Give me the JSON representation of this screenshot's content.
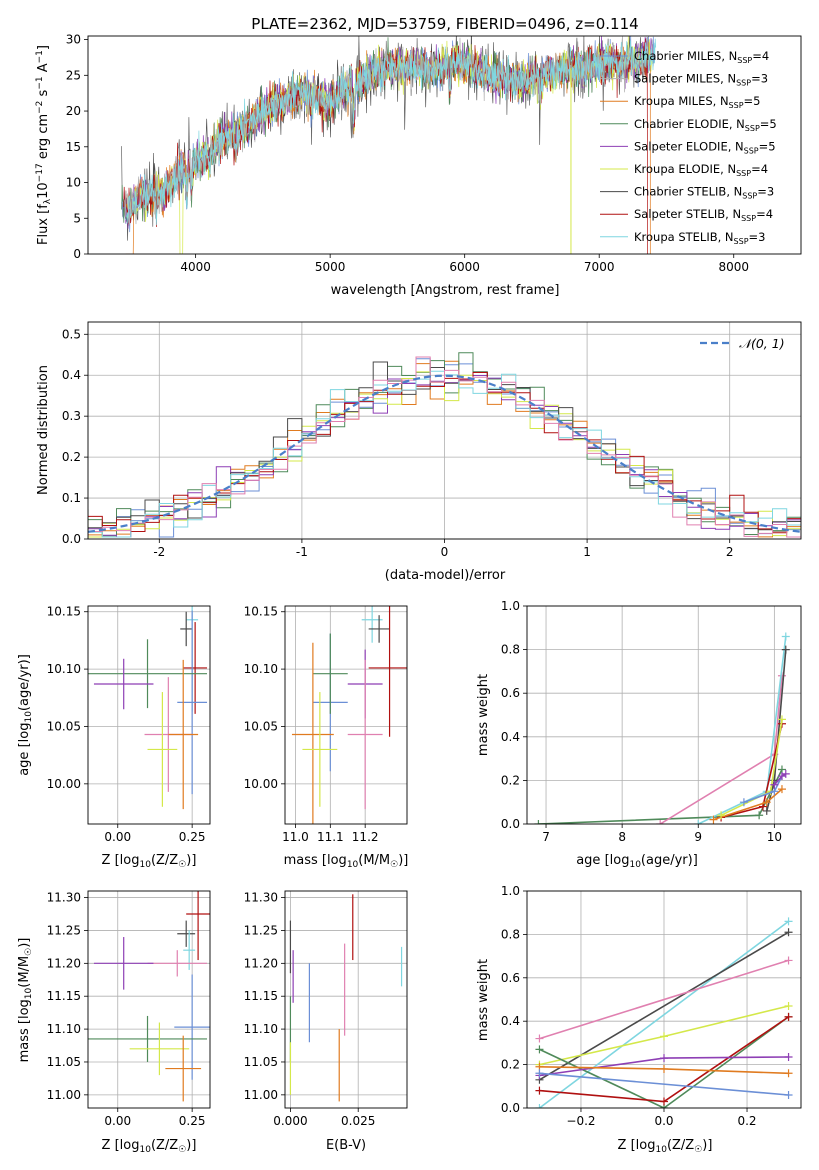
{
  "colors": {
    "chabrier_miles": "#6b8fd6",
    "salpeter_miles": "#b0b0b0",
    "kroupa_miles": "#e07b20",
    "chabrier_elodie": "#4f8a5a",
    "salpeter_elodie": "#8e3fb5",
    "kroupa_elodie": "#d4e84a",
    "chabrier_stelib": "#4a4a4a",
    "salpeter_stelib": "#b01010",
    "kroupa_stelib": "#7fd6e0",
    "pink": "#e080b0",
    "gaussian": "#4a7fc9"
  },
  "chart_data": [
    {
      "id": "spectrum",
      "type": "line",
      "title": "PLATE=2362, MJD=53759, FIBERID=0496, z=0.114",
      "xlabel": "wavelength [Angstrom, rest frame]",
      "ylabel": "Flux [f_λ 10^-17 erg cm^-2 s^-1 A^-1]",
      "xlim": [
        3200,
        8500
      ],
      "ylim": [
        0,
        30.5
      ],
      "xticks": [
        4000,
        5000,
        6000,
        7000,
        8000
      ],
      "yticks": [
        0,
        5,
        10,
        15,
        20,
        25,
        30
      ],
      "grid": false,
      "legend_position": "upper-right",
      "x": [
        3450,
        3500,
        3600,
        3700,
        3800,
        3900,
        4000,
        4100,
        4200,
        4300,
        4400,
        4500,
        4600,
        4700,
        4800,
        4900,
        5000,
        5100,
        5200,
        5300,
        5400,
        5500,
        5600,
        5700,
        5800,
        5900,
        6000,
        6100,
        6200,
        6300,
        6400,
        6500,
        6600,
        6700,
        6800,
        6900,
        7000,
        7100,
        7200,
        7300,
        7400
      ],
      "y": [
        7,
        6,
        8.5,
        8,
        9.5,
        12,
        13,
        14,
        16,
        17,
        18,
        20,
        21,
        22,
        22.5,
        22,
        21,
        23,
        24,
        25,
        26,
        26,
        26.5,
        26,
        26,
        27,
        26.5,
        26,
        25,
        24.5,
        24,
        24.5,
        25,
        25.5,
        26,
        26,
        26.5,
        27,
        26.5,
        27,
        28
      ],
      "series": [
        {
          "name": "Chabrier MILES, N_SSP=4",
          "color_key": "chabrier_miles"
        },
        {
          "name": "Salpeter MILES, N_SSP=3",
          "color_key": "salpeter_miles"
        },
        {
          "name": "Kroupa MILES, N_SSP=5",
          "color_key": "kroupa_miles"
        },
        {
          "name": "Chabrier ELODIE, N_SSP=5",
          "color_key": "chabrier_elodie"
        },
        {
          "name": "Salpeter ELODIE, N_SSP=5",
          "color_key": "salpeter_elodie"
        },
        {
          "name": "Kroupa ELODIE, N_SSP=4",
          "color_key": "kroupa_elodie"
        },
        {
          "name": "Chabrier STELIB, N_SSP=3",
          "color_key": "chabrier_stelib"
        },
        {
          "name": "Salpeter STELIB, N_SSP=4",
          "color_key": "salpeter_stelib"
        },
        {
          "name": "Kroupa STELIB, N_SSP=3",
          "color_key": "kroupa_stelib"
        }
      ]
    },
    {
      "id": "residuals",
      "type": "line",
      "xlabel": "(data-model)/error",
      "ylabel": "Normed distribution",
      "xlim": [
        -2.5,
        2.5
      ],
      "ylim": [
        0,
        0.53
      ],
      "xticks": [
        -2,
        -1,
        0,
        1,
        2
      ],
      "yticks": [
        0.0,
        0.1,
        0.2,
        0.3,
        0.4,
        0.5
      ],
      "grid": true,
      "legend_position": "upper-right",
      "legend": "N(0,1)",
      "bin_width": 0.1,
      "series_color_keys": [
        "chabrier_miles",
        "kroupa_miles",
        "chabrier_elodie",
        "salpeter_elodie",
        "kroupa_elodie",
        "chabrier_stelib",
        "salpeter_stelib",
        "kroupa_stelib",
        "pink"
      ]
    },
    {
      "id": "age_vs_Z",
      "type": "scatter",
      "xlabel": "Z [log10(Z/Z☉)]",
      "ylabel": "age [log10(age/yr)]",
      "xlim": [
        -0.1,
        0.31
      ],
      "ylim": [
        9.965,
        10.155
      ],
      "xticks": [
        0.0,
        0.25
      ],
      "yticks": [
        10.0,
        10.05,
        10.1,
        10.15
      ],
      "grid": true,
      "points": [
        {
          "x": 0.25,
          "y": 10.143,
          "xerr": 0.02,
          "yerr": 0.08,
          "color_key": "kroupa_stelib"
        },
        {
          "x": 0.23,
          "y": 10.135,
          "xerr": 0.02,
          "yerr": 0.015,
          "color_key": "chabrier_stelib"
        },
        {
          "x": 0.26,
          "y": 10.101,
          "xerr": 0.04,
          "yerr": 0.04,
          "color_key": "salpeter_stelib"
        },
        {
          "x": 0.25,
          "y": 10.071,
          "xerr": 0.05,
          "yerr": 0.08,
          "color_key": "chabrier_miles"
        },
        {
          "x": 0.1,
          "y": 10.096,
          "xerr": 0.2,
          "yerr": 0.03,
          "color_key": "chabrier_elodie"
        },
        {
          "x": 0.02,
          "y": 10.087,
          "xerr": 0.1,
          "yerr": 0.022,
          "color_key": "salpeter_elodie"
        },
        {
          "x": 0.17,
          "y": 10.043,
          "xerr": 0.08,
          "yerr": 0.05,
          "color_key": "pink"
        },
        {
          "x": 0.22,
          "y": 10.043,
          "xerr": 0.05,
          "yerr": 0.065,
          "color_key": "kroupa_miles"
        },
        {
          "x": 0.15,
          "y": 10.03,
          "xerr": 0.05,
          "yerr": 0.05,
          "color_key": "kroupa_elodie"
        }
      ]
    },
    {
      "id": "age_vs_mass",
      "type": "scatter",
      "xlabel": "mass [log10(M/M☉)]",
      "ylabel": "",
      "xlim": [
        10.97,
        11.32
      ],
      "ylim": [
        9.965,
        10.155
      ],
      "xticks": [
        11.0,
        11.1,
        11.2
      ],
      "yticks": [
        10.0,
        10.05,
        10.1,
        10.15
      ],
      "grid": true,
      "points": [
        {
          "x": 11.22,
          "y": 10.143,
          "xerr": 0.03,
          "yerr": 0.02,
          "color_key": "kroupa_stelib"
        },
        {
          "x": 11.24,
          "y": 10.135,
          "xerr": 0.03,
          "yerr": 0.012,
          "color_key": "chabrier_stelib"
        },
        {
          "x": 11.27,
          "y": 10.101,
          "xerr": 0.06,
          "yerr": 0.06,
          "color_key": "salpeter_stelib"
        },
        {
          "x": 11.1,
          "y": 10.071,
          "xerr": 0.05,
          "yerr": 0.06,
          "color_key": "chabrier_miles"
        },
        {
          "x": 11.1,
          "y": 10.096,
          "xerr": 0.05,
          "yerr": 0.035,
          "color_key": "chabrier_elodie"
        },
        {
          "x": 11.2,
          "y": 10.087,
          "xerr": 0.05,
          "yerr": 0.03,
          "color_key": "salpeter_elodie"
        },
        {
          "x": 11.2,
          "y": 10.043,
          "xerr": 0.05,
          "yerr": 0.065,
          "color_key": "pink"
        },
        {
          "x": 11.05,
          "y": 10.043,
          "xerr": 0.06,
          "yerr": 0.08,
          "color_key": "kroupa_miles"
        },
        {
          "x": 11.07,
          "y": 10.03,
          "xerr": 0.05,
          "yerr": 0.05,
          "color_key": "kroupa_elodie"
        }
      ]
    },
    {
      "id": "weight_vs_age",
      "type": "line",
      "xlabel": "age [log10(age/yr)]",
      "ylabel": "mass weight",
      "xlim": [
        6.75,
        10.35
      ],
      "ylim": [
        0,
        1.0
      ],
      "xticks": [
        7,
        8,
        9,
        10
      ],
      "yticks": [
        0.0,
        0.2,
        0.4,
        0.6,
        0.8,
        1.0
      ],
      "grid": true,
      "series": [
        {
          "color_key": "chabrier_elodie",
          "x": [
            6.9,
            9.8,
            10.1
          ],
          "y": [
            0.0,
            0.04,
            0.25
          ]
        },
        {
          "color_key": "pink",
          "x": [
            8.5,
            10.0,
            10.1
          ],
          "y": [
            0.0,
            0.32,
            0.68
          ]
        },
        {
          "color_key": "kroupa_stelib",
          "x": [
            9.0,
            9.9,
            10.15
          ],
          "y": [
            0.0,
            0.15,
            0.86
          ]
        },
        {
          "color_key": "chabrier_stelib",
          "x": [
            9.9,
            10.0,
            10.15
          ],
          "y": [
            0.06,
            0.2,
            0.8
          ]
        },
        {
          "color_key": "salpeter_stelib",
          "x": [
            9.3,
            9.85,
            10.1
          ],
          "y": [
            0.03,
            0.08,
            0.46
          ]
        },
        {
          "color_key": "kroupa_miles",
          "x": [
            9.2,
            9.9,
            10.1
          ],
          "y": [
            0.02,
            0.1,
            0.16
          ]
        },
        {
          "color_key": "kroupa_elodie",
          "x": [
            9.3,
            9.95,
            10.1
          ],
          "y": [
            0.04,
            0.15,
            0.48
          ]
        },
        {
          "color_key": "chabrier_miles",
          "x": [
            9.6,
            10.0,
            10.1
          ],
          "y": [
            0.1,
            0.15,
            0.22
          ]
        },
        {
          "color_key": "salpeter_elodie",
          "x": [
            10.0,
            10.1,
            10.15
          ],
          "y": [
            0.18,
            0.22,
            0.23
          ]
        }
      ]
    },
    {
      "id": "mass_vs_Z",
      "type": "scatter",
      "xlabel": "Z [log10(Z/Z☉)]",
      "ylabel": "mass [log10(M/M☉)]",
      "xlim": [
        -0.1,
        0.31
      ],
      "ylim": [
        10.98,
        11.31
      ],
      "xticks": [
        0.0,
        0.25
      ],
      "yticks": [
        11.0,
        11.05,
        11.1,
        11.15,
        11.2,
        11.25,
        11.3
      ],
      "grid": true,
      "points": [
        {
          "x": 0.27,
          "y": 11.275,
          "xerr": 0.04,
          "yerr": 0.07,
          "color_key": "salpeter_stelib"
        },
        {
          "x": 0.23,
          "y": 11.245,
          "xerr": 0.03,
          "yerr": 0.02,
          "color_key": "chabrier_stelib"
        },
        {
          "x": 0.24,
          "y": 11.22,
          "xerr": 0.02,
          "yerr": 0.03,
          "color_key": "kroupa_stelib"
        },
        {
          "x": 0.2,
          "y": 11.2,
          "xerr": 0.1,
          "yerr": 0.02,
          "color_key": "pink"
        },
        {
          "x": 0.02,
          "y": 11.2,
          "xerr": 0.1,
          "yerr": 0.04,
          "color_key": "salpeter_elodie"
        },
        {
          "x": 0.25,
          "y": 11.103,
          "xerr": 0.06,
          "yerr": 0.08,
          "color_key": "chabrier_miles"
        },
        {
          "x": 0.1,
          "y": 11.085,
          "xerr": 0.2,
          "yerr": 0.035,
          "color_key": "chabrier_elodie"
        },
        {
          "x": 0.14,
          "y": 11.07,
          "xerr": 0.1,
          "yerr": 0.04,
          "color_key": "kroupa_elodie"
        },
        {
          "x": 0.22,
          "y": 11.04,
          "xerr": 0.06,
          "yerr": 0.05,
          "color_key": "kroupa_miles"
        }
      ]
    },
    {
      "id": "mass_vs_ebv",
      "type": "scatter",
      "xlabel": "E(B-V)",
      "ylabel": "",
      "xlim": [
        -0.002,
        0.043
      ],
      "ylim": [
        10.98,
        11.31
      ],
      "xticks": [
        0.0,
        0.025
      ],
      "yticks": [
        11.0,
        11.05,
        11.1,
        11.15,
        11.2,
        11.25,
        11.3
      ],
      "grid": true,
      "points": [
        {
          "x": 0.023,
          "y": 11.255,
          "yerr": 0.05,
          "color_key": "salpeter_stelib"
        },
        {
          "x": 0.0,
          "y": 11.225,
          "yerr": 0.04,
          "color_key": "chabrier_stelib"
        },
        {
          "x": 0.041,
          "y": 11.195,
          "yerr": 0.03,
          "color_key": "kroupa_stelib"
        },
        {
          "x": 0.02,
          "y": 11.16,
          "yerr": 0.07,
          "color_key": "pink"
        },
        {
          "x": 0.001,
          "y": 11.18,
          "yerr": 0.04,
          "color_key": "salpeter_elodie"
        },
        {
          "x": 0.007,
          "y": 11.14,
          "yerr": 0.06,
          "color_key": "chabrier_miles"
        },
        {
          "x": 0.0,
          "y": 11.1,
          "yerr": 0.05,
          "color_key": "chabrier_elodie"
        },
        {
          "x": 0.0,
          "y": 11.04,
          "yerr": 0.04,
          "color_key": "kroupa_elodie"
        },
        {
          "x": 0.018,
          "y": 11.045,
          "yerr": 0.055,
          "color_key": "kroupa_miles"
        }
      ]
    },
    {
      "id": "weight_vs_Z",
      "type": "line",
      "xlabel": "Z [log10(Z/Z☉)]",
      "ylabel": "mass weight",
      "xlim": [
        -0.33,
        0.33
      ],
      "ylim": [
        0,
        1.0
      ],
      "xticks": [
        -0.2,
        0.0,
        0.2
      ],
      "yticks": [
        0.0,
        0.2,
        0.4,
        0.6,
        0.8,
        1.0
      ],
      "grid": true,
      "series": [
        {
          "color_key": "kroupa_stelib",
          "x": [
            -0.3,
            0.3
          ],
          "y": [
            0.0,
            0.86
          ]
        },
        {
          "color_key": "chabrier_stelib",
          "x": [
            -0.3,
            0.3
          ],
          "y": [
            0.13,
            0.81
          ]
        },
        {
          "color_key": "pink",
          "x": [
            -0.3,
            0.3
          ],
          "y": [
            0.32,
            0.68
          ]
        },
        {
          "color_key": "kroupa_elodie",
          "x": [
            -0.3,
            0.0,
            0.3
          ],
          "y": [
            0.2,
            0.33,
            0.47
          ]
        },
        {
          "color_key": "chabrier_elodie",
          "x": [
            -0.3,
            0.0,
            0.3
          ],
          "y": [
            0.27,
            0.0,
            0.42
          ]
        },
        {
          "color_key": "salpeter_stelib",
          "x": [
            -0.3,
            0.0,
            0.3
          ],
          "y": [
            0.08,
            0.03,
            0.42
          ]
        },
        {
          "color_key": "salpeter_elodie",
          "x": [
            -0.3,
            0.0,
            0.3
          ],
          "y": [
            0.15,
            0.23,
            0.235
          ]
        },
        {
          "color_key": "kroupa_miles",
          "x": [
            -0.3,
            0.0,
            0.3
          ],
          "y": [
            0.19,
            0.18,
            0.16
          ]
        },
        {
          "color_key": "chabrier_miles",
          "x": [
            -0.3,
            0.3
          ],
          "y": [
            0.16,
            0.06
          ]
        }
      ]
    }
  ]
}
